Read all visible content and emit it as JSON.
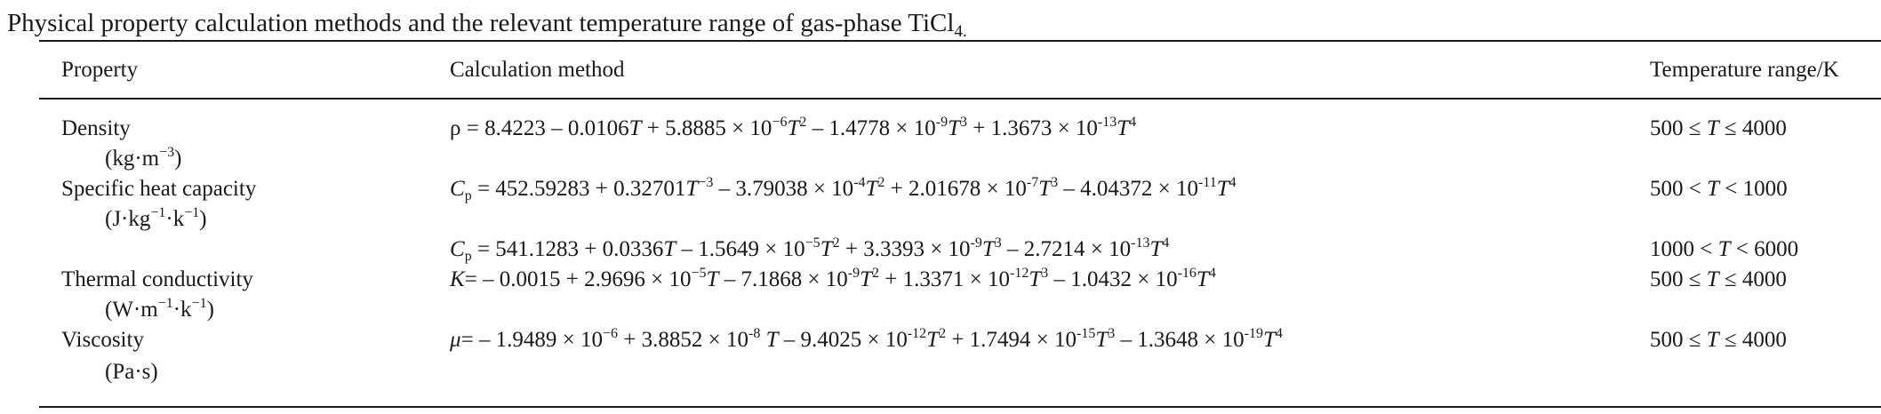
{
  "caption": {
    "text": "Physical property calculation methods and the relevant temperature range of gas-phase TiCl",
    "sub": "4."
  },
  "header": {
    "property": "Property",
    "method": "Calculation method",
    "range": "Temperature range/K"
  },
  "rows": [
    {
      "property": "Density",
      "unit": "(kg·m",
      "unit_sup": "−3",
      "unit_close": ")",
      "method": [
        {
          "t": "ρ = 8.4223 – 0.0106"
        },
        {
          "i": "T"
        },
        {
          "t": " + 5.8885 × 10"
        },
        {
          "sup": "−6"
        },
        {
          "i": "T"
        },
        {
          "sup": "2"
        },
        {
          "t": " – 1.4778 × 10"
        },
        {
          "sup": "-9"
        },
        {
          "i": "T"
        },
        {
          "sup": "3"
        },
        {
          "t": " + 1.3673 × 10"
        },
        {
          "sup": "-13"
        },
        {
          "i": "T"
        },
        {
          "sup": "4"
        }
      ],
      "range": [
        {
          "t": "500 ≤ "
        },
        {
          "i": "T"
        },
        {
          "t": " ≤ 4000"
        }
      ]
    },
    {
      "property": "Specific heat capacity",
      "unit": "(J·kg",
      "unit_sup": "−1",
      "unit_mid": "·k",
      "unit_sup2": "−1",
      "unit_close": ")",
      "method": [
        {
          "i": "C"
        },
        {
          "sub": "p"
        },
        {
          "t": " = 452.59283 + 0.32701"
        },
        {
          "i": "T"
        },
        {
          "sup": "−3"
        },
        {
          "t": " – 3.79038 × 10"
        },
        {
          "sup": "-4"
        },
        {
          "i": "T"
        },
        {
          "sup": "2"
        },
        {
          "t": " + 2.01678 × 10"
        },
        {
          "sup": "-7"
        },
        {
          "i": "T"
        },
        {
          "sup": "3"
        },
        {
          "t": " – 4.04372 × 10"
        },
        {
          "sup": "-11"
        },
        {
          "i": "T"
        },
        {
          "sup": "4"
        }
      ],
      "range": [
        {
          "t": "500 < "
        },
        {
          "i": "T"
        },
        {
          "t": " < 1000"
        }
      ]
    },
    {
      "property": "",
      "method": [
        {
          "i": "C"
        },
        {
          "sub": "p"
        },
        {
          "t": " = 541.1283 + 0.0336"
        },
        {
          "i": "T"
        },
        {
          "t": " – 1.5649 × 10"
        },
        {
          "sup": "−5"
        },
        {
          "i": "T"
        },
        {
          "sup": "2"
        },
        {
          "t": " + 3.3393 × 10"
        },
        {
          "sup": "-9"
        },
        {
          "i": "T"
        },
        {
          "sup": "3"
        },
        {
          "t": " – 2.7214 × 10"
        },
        {
          "sup": "-13"
        },
        {
          "i": "T"
        },
        {
          "sup": "4"
        }
      ],
      "range": [
        {
          "t": "1000 < "
        },
        {
          "i": "T"
        },
        {
          "t": " < 6000"
        }
      ]
    },
    {
      "property": "Thermal conductivity",
      "unit": "(W·m",
      "unit_sup": "−1",
      "unit_mid": "·k",
      "unit_sup2": "−1",
      "unit_close": ")",
      "method": [
        {
          "i": "K"
        },
        {
          "t": "= – 0.0015 + 2.9696 × 10"
        },
        {
          "sup": "−5"
        },
        {
          "i": "T"
        },
        {
          "t": " – 7.1868 × 10"
        },
        {
          "sup": "-9"
        },
        {
          "i": "T"
        },
        {
          "sup": "2"
        },
        {
          "t": " + 1.3371 × 10"
        },
        {
          "sup": "-12"
        },
        {
          "i": "T"
        },
        {
          "sup": "3"
        },
        {
          "t": " – 1.0432 × 10"
        },
        {
          "sup": "-16"
        },
        {
          "i": "T"
        },
        {
          "sup": "4"
        }
      ],
      "range": [
        {
          "t": "500 ≤ "
        },
        {
          "i": "T"
        },
        {
          "t": " ≤ 4000"
        }
      ]
    },
    {
      "property": "Viscosity",
      "unit": "(Pa·s)",
      "method": [
        {
          "i": "μ"
        },
        {
          "t": "= – 1.9489 × 10"
        },
        {
          "sup": "−6"
        },
        {
          "t": " + 3.8852 × 10"
        },
        {
          "sup": "-8"
        },
        {
          "t": " "
        },
        {
          "i": "T"
        },
        {
          "t": " – 9.4025 × 10"
        },
        {
          "sup": "-12"
        },
        {
          "i": "T"
        },
        {
          "sup": "2"
        },
        {
          "t": " + 1.7494 × 10"
        },
        {
          "sup": "-15"
        },
        {
          "i": "T"
        },
        {
          "sup": "3"
        },
        {
          "t": " – 1.3648 × 10"
        },
        {
          "sup": "-19"
        },
        {
          "i": "T"
        },
        {
          "sup": "4"
        }
      ],
      "range": [
        {
          "t": "500 ≤ "
        },
        {
          "i": "T"
        },
        {
          "t": " ≤ 4000"
        }
      ]
    }
  ]
}
